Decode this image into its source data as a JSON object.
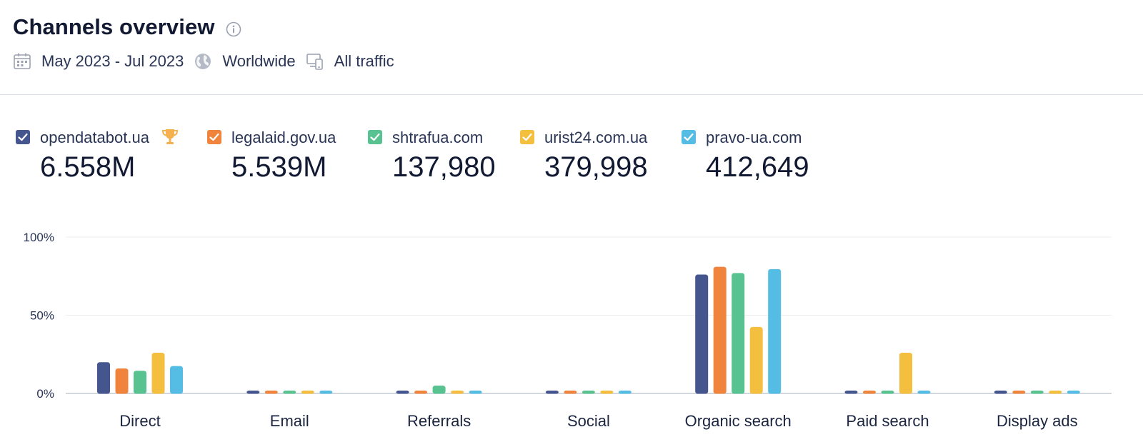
{
  "header": {
    "title": "Channels overview",
    "date_range": "May 2023 - Jul 2023",
    "region": "Worldwide",
    "traffic_type": "All traffic"
  },
  "legend": [
    {
      "domain": "opendatabot.ua",
      "value": "6.558M",
      "color": "#45558e",
      "winner": true
    },
    {
      "domain": "legalaid.gov.ua",
      "value": "5.539M",
      "color": "#f0843c",
      "winner": false
    },
    {
      "domain": "shtrafua.com",
      "value": "137,980",
      "color": "#58c390",
      "winner": false
    },
    {
      "domain": "urist24.com.ua",
      "value": "379,998",
      "color": "#f4be3e",
      "winner": false
    },
    {
      "domain": "pravo-ua.com",
      "value": "412,649",
      "color": "#55bde4",
      "winner": false
    }
  ],
  "chart_data": {
    "type": "bar",
    "categories": [
      "Direct",
      "Email",
      "Referrals",
      "Social",
      "Organic search",
      "Paid search",
      "Display ads"
    ],
    "series": [
      {
        "name": "opendatabot.ua",
        "color": "#45558e",
        "values": [
          20,
          0.5,
          0.5,
          0.5,
          76,
          0.5,
          0.5
        ]
      },
      {
        "name": "legalaid.gov.ua",
        "color": "#f0843c",
        "values": [
          16,
          0.5,
          0.5,
          0.5,
          81,
          0.5,
          0.5
        ]
      },
      {
        "name": "shtrafua.com",
        "color": "#58c390",
        "values": [
          14.5,
          0.5,
          5,
          0.5,
          77,
          0.5,
          0.5
        ]
      },
      {
        "name": "urist24.com.ua",
        "color": "#f4be3e",
        "values": [
          26,
          0.5,
          0.5,
          0.5,
          42.5,
          26,
          0.5
        ]
      },
      {
        "name": "pravo-ua.com",
        "color": "#55bde4",
        "values": [
          17.5,
          0.5,
          0.5,
          0.5,
          79.5,
          0.5,
          0.5
        ]
      }
    ],
    "ylim": [
      0,
      100
    ],
    "yticks": [
      "0%",
      "50%",
      "100%"
    ],
    "ytick_values": [
      0,
      50,
      100
    ],
    "grid": true
  }
}
